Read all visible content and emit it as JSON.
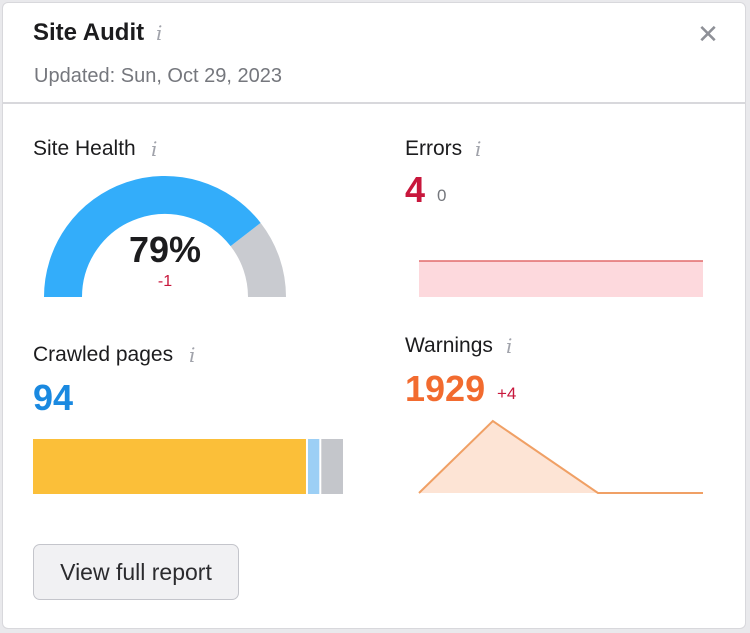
{
  "header": {
    "title": "Site Audit",
    "updated": "Updated: Sun, Oct 29, 2023",
    "info_glyph": "i",
    "close_glyph": "✕"
  },
  "site_health": {
    "label": "Site Health",
    "value_text": "79%",
    "value": 79,
    "delta": "-1",
    "colors": {
      "fill": "#33adfa",
      "rest": "#c9cbd0"
    }
  },
  "errors": {
    "label": "Errors",
    "value": "4",
    "delta": "0",
    "trend": [
      4,
      4,
      4,
      4,
      4,
      4
    ],
    "colors": {
      "value": "#c8173c",
      "line": "#e26b6b",
      "area": "#fdd9dd"
    }
  },
  "crawled": {
    "label": "Crawled pages",
    "value": "94",
    "colors": {
      "value": "#1a89e0"
    },
    "segments": [
      {
        "share": 0.887,
        "color": "#fbbf39"
      },
      {
        "share": 0.043,
        "color": "#9ccff5"
      },
      {
        "share": 0.07,
        "color": "#c4c6cb"
      }
    ]
  },
  "warnings": {
    "label": "Warnings",
    "value": "1929",
    "delta": "+4",
    "trend": [
      0,
      1929,
      0,
      0
    ],
    "colors": {
      "value": "#f26b2f",
      "line": "#f0a065",
      "area": "#fde4d5"
    }
  },
  "footer": {
    "button_label": "View full report"
  }
}
